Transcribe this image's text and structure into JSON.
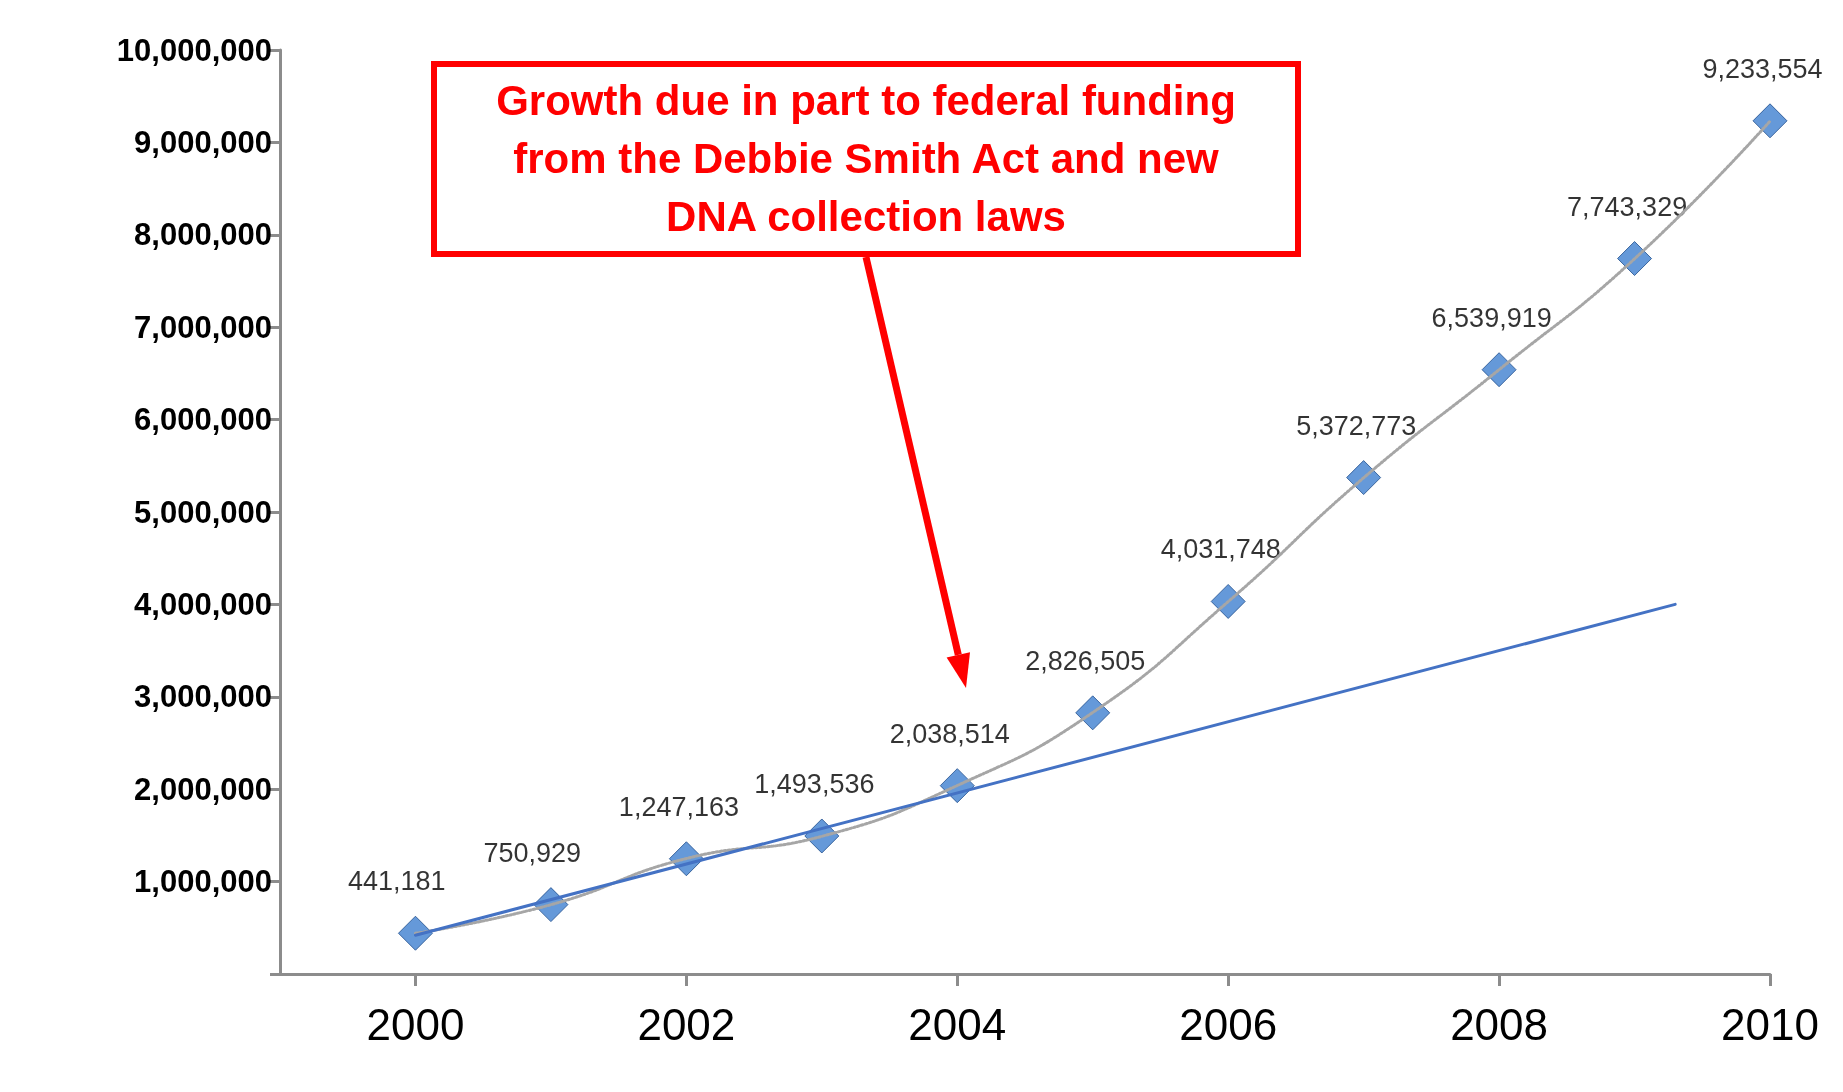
{
  "chart_data": {
    "type": "scatter",
    "x": [
      2000,
      2001,
      2002,
      2003,
      2004,
      2005,
      2006,
      2007,
      2008,
      2009,
      2010
    ],
    "xlim": [
      1999,
      2010
    ],
    "xticks": [
      2000,
      2002,
      2004,
      2006,
      2008,
      2010
    ],
    "ylim": [
      0,
      10000000
    ],
    "yticks": [
      {
        "value": 0,
        "label": null
      },
      {
        "value": 1000000,
        "label": "1,000,000"
      },
      {
        "value": 2000000,
        "label": "2,000,000"
      },
      {
        "value": 3000000,
        "label": "3,000,000"
      },
      {
        "value": 4000000,
        "label": "4,000,000"
      },
      {
        "value": 5000000,
        "label": "5,000,000"
      },
      {
        "value": 6000000,
        "label": "6,000,000"
      },
      {
        "value": 7000000,
        "label": "7,000,000"
      },
      {
        "value": 8000000,
        "label": "8,000,000"
      },
      {
        "value": 9000000,
        "label": "9,000,000"
      },
      {
        "value": 10000000,
        "label": "10,000,000"
      }
    ],
    "series": [
      {
        "type": "line",
        "color": "#a6a6a6",
        "line_style": "dotted",
        "marker": "none",
        "values": [
          440000,
          750000,
          1250000,
          1490000,
          2040000,
          2830000,
          4030000,
          5370000,
          6540000,
          7740000,
          9230000
        ]
      },
      {
        "type": "line",
        "color": "#4472c4",
        "line_style": "solid",
        "marker": "none",
        "x": [
          2000,
          2009.3
        ],
        "values": [
          420000,
          4000000
        ]
      },
      {
        "color": "#3f7fcf",
        "marker": "diamond",
        "values": [
          441181,
          750929,
          1247163,
          1493536,
          2038514,
          2826505,
          4031748,
          5372773,
          6539919,
          7743329,
          9233554
        ],
        "value_labels": [
          "441,181",
          "750,929",
          "1,247,163",
          "1,493,536",
          "2,038,514",
          "2,826,505",
          "4,031,748",
          "5,372,773",
          "6,539,919",
          "7,743,329",
          "9,233,554"
        ]
      }
    ],
    "annotations": [
      "Growth due in part to federal funding from the Debbie Smith Act and new DNA collection laws"
    ]
  }
}
